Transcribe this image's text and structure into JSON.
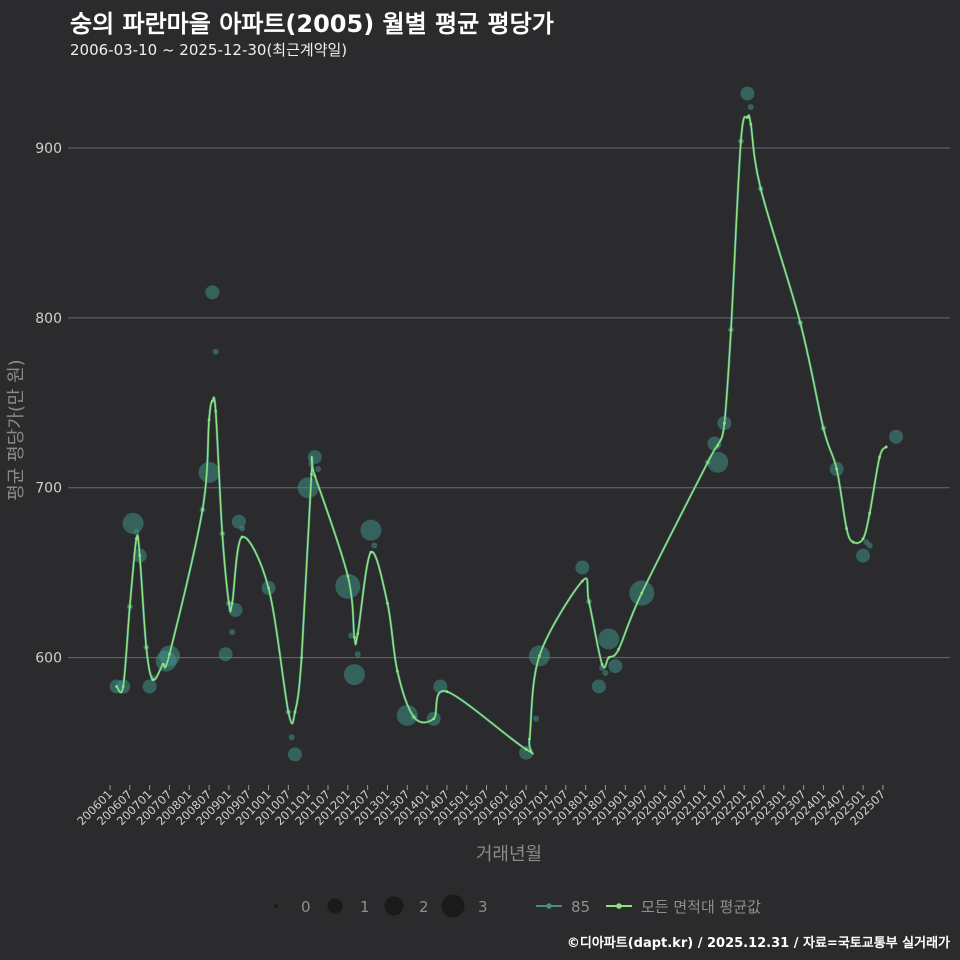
{
  "header": {
    "title": "숭의 파란마을 아파트(2005) 월별 평균 평당가",
    "subtitle": "2006-03-10 ~ 2025-12-30(최근계약일)"
  },
  "caption": "©디아파트(dapt.kr) / 2025.12.31 / 자료=국토교통부 실거래가",
  "colors": {
    "background": "#2b2b2d",
    "grid": "#6a6a6a",
    "series_85": "#3f8f86",
    "avg_line": "#8fe37f"
  },
  "chart_data": {
    "type": "line",
    "xlabel": "거래년월",
    "ylabel": "평균 평당가(만 원)",
    "ylim": [
      525,
      940
    ],
    "yticks": [
      600,
      700,
      800,
      900
    ],
    "x_start": "2006-01",
    "x_end": "2025-12",
    "x_tick_labels": [
      "200601",
      "200607",
      "200701",
      "200707",
      "200801",
      "200807",
      "200901",
      "200907",
      "201001",
      "201007",
      "201101",
      "201107",
      "201201",
      "201207",
      "201301",
      "201307",
      "201401",
      "201407",
      "201501",
      "201507",
      "201601",
      "201607",
      "201701",
      "201707",
      "201801",
      "201807",
      "201901",
      "201907",
      "202001",
      "202007",
      "202101",
      "202107",
      "202201",
      "202207",
      "202301",
      "202307",
      "202401",
      "202407",
      "202501",
      "202507"
    ],
    "size_legend": {
      "title": "",
      "values": [
        "0",
        "1",
        "2",
        "3"
      ]
    },
    "series": [
      {
        "name": "85",
        "type": "scatter",
        "points": [
          {
            "x": "2006-03",
            "y": 583,
            "n": 1
          },
          {
            "x": "2006-05",
            "y": 583,
            "n": 1
          },
          {
            "x": "2006-07",
            "y": 630,
            "n": 0
          },
          {
            "x": "2006-08",
            "y": 679,
            "n": 2
          },
          {
            "x": "2006-09",
            "y": 674,
            "n": 0
          },
          {
            "x": "2006-10",
            "y": 660,
            "n": 1
          },
          {
            "x": "2006-12",
            "y": 606,
            "n": 0
          },
          {
            "x": "2007-01",
            "y": 583,
            "n": 1
          },
          {
            "x": "2007-02",
            "y": 588,
            "n": 0
          },
          {
            "x": "2007-06",
            "y": 598,
            "n": 2
          },
          {
            "x": "2007-07",
            "y": 601,
            "n": 2
          },
          {
            "x": "2008-05",
            "y": 687,
            "n": 0
          },
          {
            "x": "2008-07",
            "y": 709,
            "n": 2
          },
          {
            "x": "2008-08",
            "y": 815,
            "n": 1
          },
          {
            "x": "2008-09",
            "y": 780,
            "n": 0
          },
          {
            "x": "2008-11",
            "y": 673,
            "n": 0
          },
          {
            "x": "2008-12",
            "y": 602,
            "n": 1
          },
          {
            "x": "2009-01",
            "y": 632,
            "n": 0
          },
          {
            "x": "2009-02",
            "y": 615,
            "n": 0
          },
          {
            "x": "2009-03",
            "y": 628,
            "n": 1
          },
          {
            "x": "2009-04",
            "y": 680,
            "n": 1
          },
          {
            "x": "2009-05",
            "y": 676,
            "n": 0
          },
          {
            "x": "2010-01",
            "y": 641,
            "n": 1
          },
          {
            "x": "2010-07",
            "y": 568,
            "n": 0
          },
          {
            "x": "2010-08",
            "y": 553,
            "n": 0
          },
          {
            "x": "2010-09",
            "y": 543,
            "n": 1
          },
          {
            "x": "2011-01",
            "y": 700,
            "n": 2
          },
          {
            "x": "2011-02",
            "y": 714,
            "n": 0
          },
          {
            "x": "2011-03",
            "y": 718,
            "n": 1
          },
          {
            "x": "2011-04",
            "y": 711,
            "n": 0
          },
          {
            "x": "2012-01",
            "y": 642,
            "n": 3
          },
          {
            "x": "2012-02",
            "y": 613,
            "n": 0
          },
          {
            "x": "2012-03",
            "y": 590,
            "n": 2
          },
          {
            "x": "2012-04",
            "y": 602,
            "n": 0
          },
          {
            "x": "2012-08",
            "y": 675,
            "n": 2
          },
          {
            "x": "2012-09",
            "y": 666,
            "n": 0
          },
          {
            "x": "2013-07",
            "y": 566,
            "n": 2
          },
          {
            "x": "2013-09",
            "y": 565,
            "n": 0
          },
          {
            "x": "2014-03",
            "y": 564,
            "n": 1
          },
          {
            "x": "2014-05",
            "y": 583,
            "n": 1
          },
          {
            "x": "2016-07",
            "y": 544,
            "n": 1
          },
          {
            "x": "2016-10",
            "y": 564,
            "n": 0
          },
          {
            "x": "2016-11",
            "y": 601,
            "n": 2
          },
          {
            "x": "2017-12",
            "y": 653,
            "n": 1
          },
          {
            "x": "2018-02",
            "y": 633,
            "n": 0
          },
          {
            "x": "2018-05",
            "y": 583,
            "n": 1
          },
          {
            "x": "2018-06",
            "y": 594,
            "n": 0
          },
          {
            "x": "2018-07",
            "y": 591,
            "n": 0
          },
          {
            "x": "2018-08",
            "y": 611,
            "n": 2
          },
          {
            "x": "2018-10",
            "y": 595,
            "n": 1
          },
          {
            "x": "2019-06",
            "y": 638,
            "n": 3
          },
          {
            "x": "2021-02",
            "y": 715,
            "n": 0
          },
          {
            "x": "2021-04",
            "y": 726,
            "n": 1
          },
          {
            "x": "2021-05",
            "y": 715,
            "n": 2
          },
          {
            "x": "2021-07",
            "y": 738,
            "n": 1
          },
          {
            "x": "2021-09",
            "y": 793,
            "n": 0
          },
          {
            "x": "2021-12",
            "y": 904,
            "n": 0
          },
          {
            "x": "2022-02",
            "y": 932,
            "n": 1
          },
          {
            "x": "2022-03",
            "y": 924,
            "n": 0
          },
          {
            "x": "2022-06",
            "y": 876,
            "n": 0
          },
          {
            "x": "2023-06",
            "y": 797,
            "n": 0
          },
          {
            "x": "2024-01",
            "y": 735,
            "n": 0
          },
          {
            "x": "2024-05",
            "y": 711,
            "n": 1
          },
          {
            "x": "2025-01",
            "y": 660,
            "n": 1
          },
          {
            "x": "2025-02",
            "y": 668,
            "n": 0
          },
          {
            "x": "2025-03",
            "y": 666,
            "n": 0
          },
          {
            "x": "2025-11",
            "y": 730,
            "n": 1
          }
        ]
      },
      {
        "name": "모든 면적대 평균값",
        "type": "line",
        "points": [
          {
            "x": "2006-03",
            "y": 583
          },
          {
            "x": "2006-05",
            "y": 583
          },
          {
            "x": "2006-07",
            "y": 630
          },
          {
            "x": "2006-09",
            "y": 670
          },
          {
            "x": "2006-10",
            "y": 660
          },
          {
            "x": "2006-12",
            "y": 606
          },
          {
            "x": "2007-02",
            "y": 587
          },
          {
            "x": "2007-05",
            "y": 596
          },
          {
            "x": "2007-07",
            "y": 602
          },
          {
            "x": "2008-05",
            "y": 687
          },
          {
            "x": "2008-07",
            "y": 740
          },
          {
            "x": "2008-08",
            "y": 751
          },
          {
            "x": "2008-09",
            "y": 745
          },
          {
            "x": "2008-11",
            "y": 673
          },
          {
            "x": "2009-01",
            "y": 632
          },
          {
            "x": "2009-02",
            "y": 632
          },
          {
            "x": "2009-05",
            "y": 671
          },
          {
            "x": "2010-01",
            "y": 641
          },
          {
            "x": "2010-07",
            "y": 568
          },
          {
            "x": "2010-09",
            "y": 568
          },
          {
            "x": "2010-11",
            "y": 600
          },
          {
            "x": "2011-02",
            "y": 708
          },
          {
            "x": "2011-03",
            "y": 707
          },
          {
            "x": "2012-01",
            "y": 648
          },
          {
            "x": "2012-03",
            "y": 612
          },
          {
            "x": "2012-04",
            "y": 614
          },
          {
            "x": "2012-08",
            "y": 662
          },
          {
            "x": "2013-01",
            "y": 632
          },
          {
            "x": "2013-04",
            "y": 592
          },
          {
            "x": "2013-09",
            "y": 565
          },
          {
            "x": "2014-03",
            "y": 564
          },
          {
            "x": "2014-07",
            "y": 580
          },
          {
            "x": "2016-07",
            "y": 546
          },
          {
            "x": "2016-08",
            "y": 552
          },
          {
            "x": "2016-11",
            "y": 601
          },
          {
            "x": "2017-12",
            "y": 645
          },
          {
            "x": "2018-02",
            "y": 633
          },
          {
            "x": "2018-06",
            "y": 596
          },
          {
            "x": "2018-08",
            "y": 600
          },
          {
            "x": "2018-11",
            "y": 605
          },
          {
            "x": "2019-06",
            "y": 638
          },
          {
            "x": "2021-02",
            "y": 715
          },
          {
            "x": "2021-05",
            "y": 725
          },
          {
            "x": "2021-07",
            "y": 738
          },
          {
            "x": "2021-09",
            "y": 793
          },
          {
            "x": "2021-12",
            "y": 904
          },
          {
            "x": "2022-02",
            "y": 918
          },
          {
            "x": "2022-03",
            "y": 914
          },
          {
            "x": "2022-06",
            "y": 876
          },
          {
            "x": "2023-06",
            "y": 797
          },
          {
            "x": "2024-01",
            "y": 735
          },
          {
            "x": "2024-05",
            "y": 711
          },
          {
            "x": "2024-08",
            "y": 676
          },
          {
            "x": "2024-10",
            "y": 668
          },
          {
            "x": "2025-01",
            "y": 670
          },
          {
            "x": "2025-03",
            "y": 685
          },
          {
            "x": "2025-06",
            "y": 718
          },
          {
            "x": "2025-08",
            "y": 724
          }
        ]
      }
    ]
  }
}
